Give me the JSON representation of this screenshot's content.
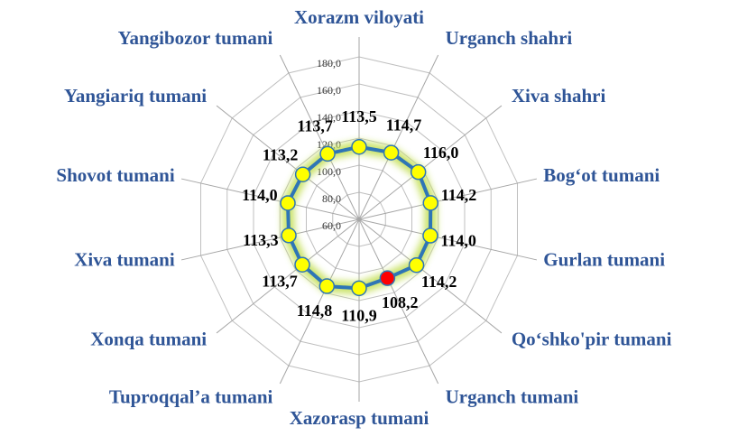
{
  "chart_data": {
    "type": "radar",
    "categories": [
      "Xorazm viloyati",
      "Urganch shahri",
      "Xiva shahri",
      "Bog‘ot tumani",
      "Gurlan tumani",
      "Qo‘shko'pir tumani",
      "Urganch tumani",
      "Xazorasp tumani",
      "Tuproqqal’a tumani",
      "Xonqa tumani",
      "Xiva tumani",
      "Shovot tumani",
      "Yangiariq tumani",
      "Yangibozor tumani"
    ],
    "values": [
      113.5,
      114.7,
      116.0,
      114.2,
      114.0,
      114.2,
      108.2,
      110.9,
      114.8,
      113.7,
      113.3,
      114.0,
      113.2,
      113.7
    ],
    "value_labels": [
      "113,5",
      "114,7",
      "116,0",
      "114,2",
      "114,0",
      "114,2",
      "108,2",
      "110,9",
      "114,8",
      "113,7",
      "113,3",
      "114,0",
      "113,2",
      "113,7"
    ],
    "color": "#2e75b6",
    "point_colors": [
      "#ffff00",
      "#ffff00",
      "#ffff00",
      "#ffff00",
      "#ffff00",
      "#ffff00",
      "#ff0000",
      "#ffff00",
      "#ffff00",
      "#ffff00",
      "#ffff00",
      "#ffff00",
      "#ffff00",
      "#ffff00"
    ],
    "ylim": [
      60,
      180
    ],
    "yticks": [
      {
        "value": 60,
        "label": "60,0"
      },
      {
        "value": 80,
        "label": "80,0"
      },
      {
        "value": 100,
        "label": "100,0"
      },
      {
        "value": 120,
        "label": "120,0"
      },
      {
        "value": 140,
        "label": "140,0"
      },
      {
        "value": 160,
        "label": "160,0"
      },
      {
        "value": 180,
        "label": "180,0"
      }
    ],
    "grid": true
  }
}
